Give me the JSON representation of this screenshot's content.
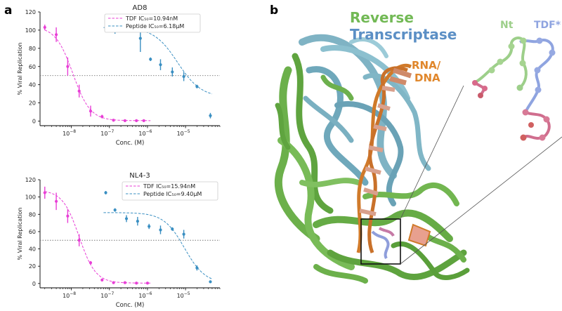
{
  "panels": {
    "a": "a",
    "b": "b"
  },
  "chart_data": [
    {
      "type": "scatter",
      "title": "AD8",
      "xlabel": "Conc. (M)",
      "ylabel": "% Viral Replication",
      "x_scale": "log",
      "xlim": [
        1.5e-09,
        8e-05
      ],
      "ylim": [
        -5,
        120
      ],
      "yticks": [
        0,
        20,
        40,
        60,
        80,
        100,
        120
      ],
      "xticks": [
        "10^{-8}",
        "10^{-7}",
        "10^{-6}",
        "10^{-5}"
      ],
      "xtick_values": [
        1e-08,
        1e-07,
        1e-06,
        1e-05
      ],
      "reference_line_y": 50,
      "legend_position": "top-center",
      "series": [
        {
          "name": "TDF IC₅₀=10.94nM",
          "color": "#e83fd6",
          "ic50": 1.094e-08,
          "hill": 1.9,
          "top": 104,
          "bottom": 0.5,
          "curve_range": [
            2e-09,
            1.2e-06
          ],
          "points": [
            {
              "x": 2e-09,
              "y": 103,
              "err": 3
            },
            {
              "x": 4e-09,
              "y": 95,
              "err": 8
            },
            {
              "x": 8e-09,
              "y": 60,
              "err": 10
            },
            {
              "x": 1.6e-08,
              "y": 33,
              "err": 7
            },
            {
              "x": 3.2e-08,
              "y": 11,
              "err": 6
            },
            {
              "x": 6.4e-08,
              "y": 5,
              "err": 2
            },
            {
              "x": 1.28e-07,
              "y": 1,
              "err": 1
            },
            {
              "x": 2.56e-07,
              "y": 0.5,
              "err": 1
            },
            {
              "x": 5.12e-07,
              "y": 0.5,
              "err": 1
            },
            {
              "x": 8e-07,
              "y": 0.5,
              "err": 1
            }
          ]
        },
        {
          "name": "Peptide IC₅₀=6.18μM",
          "color": "#3a8fc2",
          "ic50": 6.18e-06,
          "hill": 1.4,
          "top": 103,
          "bottom": 26,
          "curve_range": [
            7e-08,
            5e-05
          ],
          "points": [
            {
              "x": 8e-08,
              "y": 103,
              "err": 2
            },
            {
              "x": 1.4e-07,
              "y": 106,
              "err": 10
            },
            {
              "x": 6.5e-07,
              "y": 91,
              "err": 15
            },
            {
              "x": 1.2e-06,
              "y": 68,
              "err": 2
            },
            {
              "x": 2.2e-06,
              "y": 62,
              "err": 6
            },
            {
              "x": 4.5e-06,
              "y": 54,
              "err": 5
            },
            {
              "x": 9e-06,
              "y": 49,
              "err": 5
            },
            {
              "x": 2e-05,
              "y": 38,
              "err": 2
            },
            {
              "x": 4.5e-05,
              "y": 6,
              "err": 3
            }
          ]
        }
      ]
    },
    {
      "type": "scatter",
      "title": "NL4-3",
      "xlabel": "Conc. (M)",
      "ylabel": "% Viral Replication",
      "x_scale": "log",
      "xlim": [
        1.5e-09,
        8e-05
      ],
      "ylim": [
        -5,
        120
      ],
      "yticks": [
        0,
        20,
        40,
        60,
        80,
        100,
        120
      ],
      "xticks": [
        "10^{-8}",
        "10^{-7}",
        "10^{-6}",
        "10^{-5}"
      ],
      "xtick_values": [
        1e-08,
        1e-07,
        1e-06,
        1e-05
      ],
      "reference_line_y": 50,
      "legend_position": "top-right",
      "series": [
        {
          "name": "TDF IC₅₀=15.94nM",
          "color": "#e83fd6",
          "ic50": 1.594e-08,
          "hill": 2.0,
          "top": 108,
          "bottom": 0.5,
          "curve_range": [
            2e-09,
            1.2e-06
          ],
          "points": [
            {
              "x": 2e-09,
              "y": 105,
              "err": 7
            },
            {
              "x": 4e-09,
              "y": 95,
              "err": 10
            },
            {
              "x": 8e-09,
              "y": 78,
              "err": 8
            },
            {
              "x": 1.6e-08,
              "y": 50,
              "err": 7
            },
            {
              "x": 3.2e-08,
              "y": 24,
              "err": 2
            },
            {
              "x": 6.4e-08,
              "y": 4,
              "err": 1
            },
            {
              "x": 1.28e-07,
              "y": 1,
              "err": 1
            },
            {
              "x": 2.56e-07,
              "y": 1,
              "err": 1
            },
            {
              "x": 5.12e-07,
              "y": 0.5,
              "err": 1
            },
            {
              "x": 1e-06,
              "y": 0.5,
              "err": 1
            }
          ]
        },
        {
          "name": "Peptide IC₅₀=9.40μM",
          "color": "#3a8fc2",
          "ic50": 9.4e-06,
          "hill": 1.6,
          "top": 82,
          "bottom": 0,
          "curve_range": [
            7e-08,
            5e-05
          ],
          "points": [
            {
              "x": 8e-08,
              "y": 105,
              "err": 2
            },
            {
              "x": 1.4e-07,
              "y": 85,
              "err": 2
            },
            {
              "x": 2.8e-07,
              "y": 75,
              "err": 4
            },
            {
              "x": 5.5e-07,
              "y": 72,
              "err": 5
            },
            {
              "x": 1.1e-06,
              "y": 66,
              "err": 3
            },
            {
              "x": 2.2e-06,
              "y": 62,
              "err": 5
            },
            {
              "x": 4.5e-06,
              "y": 63,
              "err": 2
            },
            {
              "x": 9e-06,
              "y": 57,
              "err": 5
            },
            {
              "x": 2e-05,
              "y": 18,
              "err": 3
            },
            {
              "x": 4.5e-05,
              "y": 2,
              "err": 1
            }
          ]
        }
      ]
    }
  ],
  "structure": {
    "title_line1": "Reverse",
    "title_line2": "Transcriptase",
    "title_line1_color": "#72b955",
    "title_line2_color": "#5b8fc5",
    "rna_label": "RNA/\nDNA",
    "rna_label_color": "#e0872c",
    "nt_label": "Nt",
    "nt_color": "#9dcf8a",
    "tdf_label": "TDF*",
    "tdf_color": "#8fa4e0"
  }
}
